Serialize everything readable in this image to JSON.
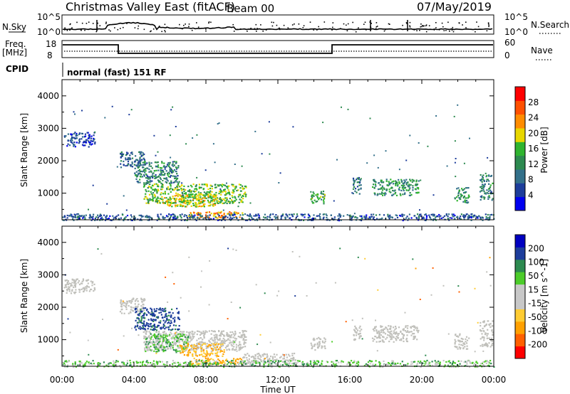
{
  "header": {
    "station": "Christmas Valley East (fitACF)",
    "beam": "Beam 00",
    "date": "07/May/2019",
    "mode": "normal (fast) 151 RF"
  },
  "summary": {
    "nsky_label": "N.Sky",
    "freq_label": "Freq.",
    "freq_unit": "[MHz]",
    "cpid_label": "CPID",
    "nsearch_label": "N.Search",
    "nave_label": "Nave",
    "nsky_ticks": [
      "10^5",
      "10^0"
    ],
    "nsearch_ticks": [
      "10^5",
      "10^0"
    ],
    "freq_ticks": [
      "18",
      "8"
    ],
    "nave_ticks": [
      "60",
      "0"
    ]
  },
  "colors": {
    "power_scale": [
      "#0000f0",
      "#1d3d9b",
      "#33708a",
      "#2d8a50",
      "#2fb42f",
      "#e8d700",
      "#ff8c00",
      "#ff5000",
      "#ff0000"
    ],
    "velocity_scale": [
      "#ff0000",
      "#ff6000",
      "#ffa000",
      "#ffcc33",
      "#c8c8c8",
      "#c8c8c8",
      "#4ccc2a",
      "#2d8a50",
      "#1d3d9b",
      "#0000c0"
    ],
    "ground_scatter": "#c0c0bb"
  },
  "chart_data": [
    {
      "type": "heatmap",
      "panel": "power",
      "ylabel": "Slant Range [km]",
      "colorbar_label": "Power [dB]",
      "colorbar_ticks": [
        "4",
        "8",
        "12",
        "16",
        "20",
        "24",
        "28"
      ],
      "x_ticks": [
        "00:00",
        "04:00",
        "08:00",
        "12:00",
        "16:00",
        "20:00",
        "00:00"
      ],
      "y_ticks": [
        "1000",
        "2000",
        "3000",
        "4000"
      ],
      "xlim_hours": [
        0,
        24
      ],
      "ylim_km": [
        180,
        4500
      ],
      "regions": [
        {
          "t0": 0.1,
          "t1": 1.8,
          "r0": 2450,
          "r1": 2900,
          "value_db": 6
        },
        {
          "t0": 3.2,
          "t1": 4.6,
          "r0": 1800,
          "r1": 2300,
          "value_db": 9
        },
        {
          "t0": 4.0,
          "t1": 6.5,
          "r0": 1300,
          "r1": 2000,
          "value_db": 12
        },
        {
          "t0": 4.5,
          "t1": 10.2,
          "r0": 700,
          "r1": 1300,
          "value_db": 18
        },
        {
          "t0": 5.5,
          "t1": 8.5,
          "r0": 600,
          "r1": 1000,
          "value_db": 22
        },
        {
          "t0": 7.0,
          "t1": 10.0,
          "r0": 250,
          "r1": 450,
          "value_db": 26
        },
        {
          "t0": 13.8,
          "t1": 14.6,
          "r0": 700,
          "r1": 1100,
          "value_db": 16
        },
        {
          "t0": 16.1,
          "t1": 16.6,
          "r0": 1000,
          "r1": 1500,
          "value_db": 10
        },
        {
          "t0": 17.2,
          "t1": 19.8,
          "r0": 950,
          "r1": 1450,
          "value_db": 14
        },
        {
          "t0": 21.8,
          "t1": 22.6,
          "r0": 700,
          "r1": 1200,
          "value_db": 13
        },
        {
          "t0": 23.2,
          "t1": 23.9,
          "r0": 800,
          "r1": 1600,
          "value_db": 12
        },
        {
          "t0": 0.0,
          "t1": 24.0,
          "r0": 180,
          "r1": 380,
          "value_db": 8
        }
      ]
    },
    {
      "type": "heatmap",
      "panel": "velocity",
      "ylabel": "Slant Range [km]",
      "xlabel": "Time UT",
      "colorbar_label": "Velocity [m s^-1]",
      "colorbar_ticks": [
        "-200",
        "-100",
        "-50",
        "-15",
        "15",
        "50",
        "100",
        "200"
      ],
      "x_ticks": [
        "00:00",
        "04:00",
        "08:00",
        "12:00",
        "16:00",
        "20:00",
        "00:00"
      ],
      "y_ticks": [
        "1000",
        "2000",
        "3000",
        "4000"
      ],
      "xlim_hours": [
        0,
        24
      ],
      "ylim_km": [
        180,
        4500
      ],
      "regions": [
        {
          "t0": 0.1,
          "t1": 1.8,
          "r0": 2450,
          "r1": 2900,
          "value_ms": 0,
          "ground_scatter": true
        },
        {
          "t0": 3.2,
          "t1": 4.6,
          "r0": 1800,
          "r1": 2300,
          "value_ms": 0,
          "ground_scatter": true
        },
        {
          "t0": 4.0,
          "t1": 6.5,
          "r0": 1300,
          "r1": 2000,
          "value_ms": 120
        },
        {
          "t0": 4.5,
          "t1": 10.2,
          "r0": 700,
          "r1": 1300,
          "value_ms": 0,
          "ground_scatter": true
        },
        {
          "t0": 4.6,
          "t1": 7.0,
          "r0": 650,
          "r1": 1200,
          "value_ms": 40
        },
        {
          "t0": 6.5,
          "t1": 9.0,
          "r0": 500,
          "r1": 900,
          "value_ms": -50
        },
        {
          "t0": 7.0,
          "t1": 10.0,
          "r0": 250,
          "r1": 450,
          "value_ms": -60
        },
        {
          "t0": 10.0,
          "t1": 13.0,
          "r0": 250,
          "r1": 600,
          "value_ms": 0,
          "ground_scatter": true
        },
        {
          "t0": 13.8,
          "t1": 14.6,
          "r0": 700,
          "r1": 1100,
          "value_ms": 0,
          "ground_scatter": true
        },
        {
          "t0": 16.1,
          "t1": 16.6,
          "r0": 1000,
          "r1": 1500,
          "value_ms": 0,
          "ground_scatter": true
        },
        {
          "t0": 17.2,
          "t1": 19.8,
          "r0": 950,
          "r1": 1450,
          "value_ms": 0,
          "ground_scatter": true
        },
        {
          "t0": 21.8,
          "t1": 22.6,
          "r0": 700,
          "r1": 1200,
          "value_ms": 0,
          "ground_scatter": true
        },
        {
          "t0": 23.2,
          "t1": 23.9,
          "r0": 800,
          "r1": 1600,
          "value_ms": 0,
          "ground_scatter": true
        },
        {
          "t0": 0.0,
          "t1": 24.0,
          "r0": 180,
          "r1": 380,
          "value_ms": 30
        }
      ]
    }
  ]
}
